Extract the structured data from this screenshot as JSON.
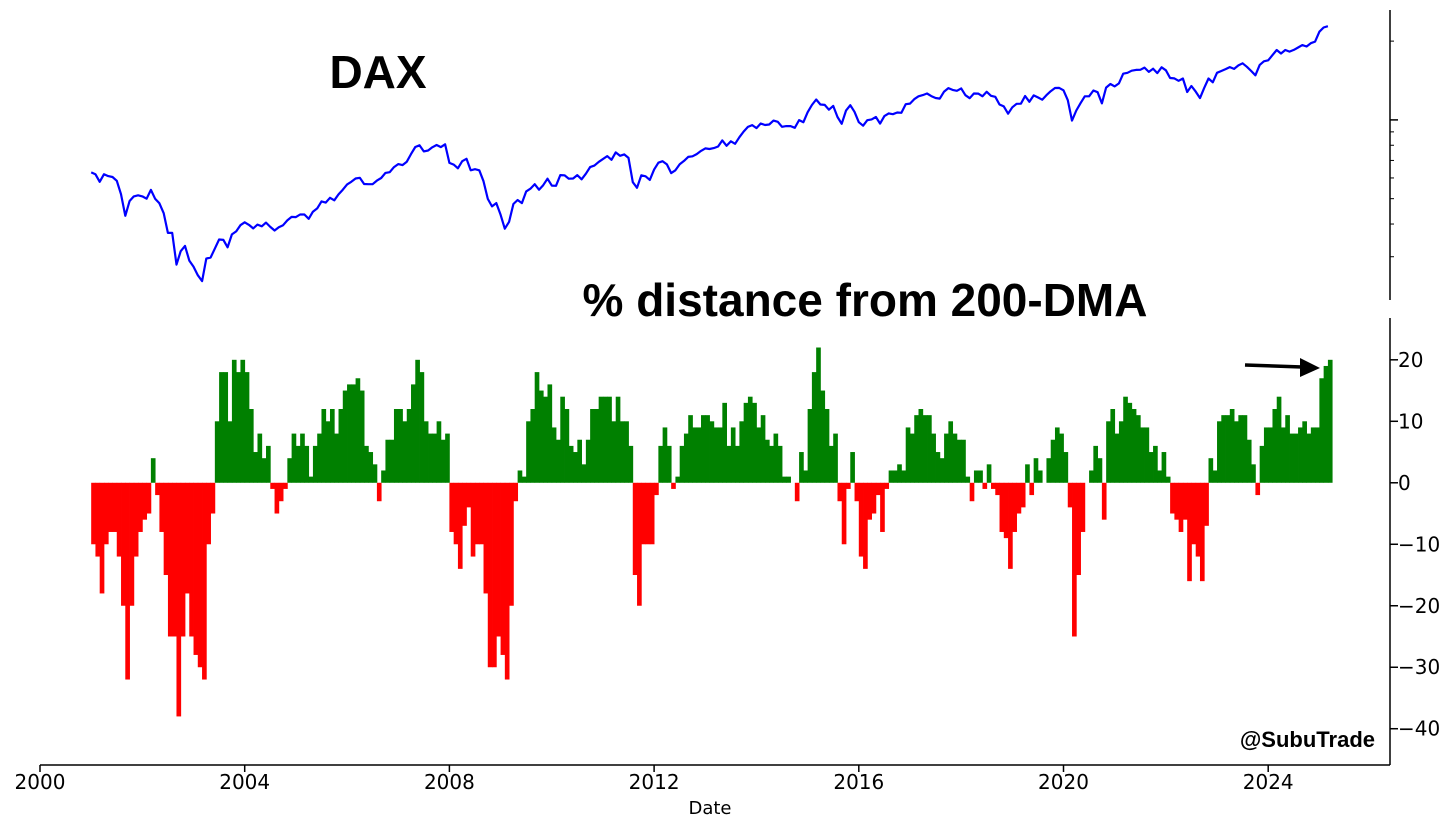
{
  "chart_data": {
    "type": "panels",
    "xlabel": "Date",
    "annotation": "@SubuTrade",
    "xlim": [
      2000,
      2026.38
    ],
    "xticks": [
      2000,
      2004,
      2008,
      2012,
      2016,
      2020,
      2024
    ],
    "x": [
      "2001-01",
      "2001-02",
      "2001-03",
      "2001-04",
      "2001-05",
      "2001-06",
      "2001-07",
      "2001-08",
      "2001-09",
      "2001-10",
      "2001-11",
      "2001-12",
      "2002-01",
      "2002-02",
      "2002-03",
      "2002-04",
      "2002-05",
      "2002-06",
      "2002-07",
      "2002-08",
      "2002-09",
      "2002-10",
      "2002-11",
      "2002-12",
      "2003-01",
      "2003-02",
      "2003-03",
      "2003-04",
      "2003-05",
      "2003-06",
      "2003-07",
      "2003-08",
      "2003-09",
      "2003-10",
      "2003-11",
      "2003-12",
      "2004-01",
      "2004-02",
      "2004-03",
      "2004-04",
      "2004-05",
      "2004-06",
      "2004-07",
      "2004-08",
      "2004-09",
      "2004-10",
      "2004-11",
      "2004-12",
      "2005-01",
      "2005-02",
      "2005-03",
      "2005-04",
      "2005-05",
      "2005-06",
      "2005-07",
      "2005-08",
      "2005-09",
      "2005-10",
      "2005-11",
      "2005-12",
      "2006-01",
      "2006-02",
      "2006-03",
      "2006-04",
      "2006-05",
      "2006-06",
      "2006-07",
      "2006-08",
      "2006-09",
      "2006-10",
      "2006-11",
      "2006-12",
      "2007-01",
      "2007-02",
      "2007-03",
      "2007-04",
      "2007-05",
      "2007-06",
      "2007-07",
      "2007-08",
      "2007-09",
      "2007-10",
      "2007-11",
      "2007-12",
      "2008-01",
      "2008-02",
      "2008-03",
      "2008-04",
      "2008-05",
      "2008-06",
      "2008-07",
      "2008-08",
      "2008-09",
      "2008-10",
      "2008-11",
      "2008-12",
      "2009-01",
      "2009-02",
      "2009-03",
      "2009-04",
      "2009-05",
      "2009-06",
      "2009-07",
      "2009-08",
      "2009-09",
      "2009-10",
      "2009-11",
      "2009-12",
      "2010-01",
      "2010-02",
      "2010-03",
      "2010-04",
      "2010-05",
      "2010-06",
      "2010-07",
      "2010-08",
      "2010-09",
      "2010-10",
      "2010-11",
      "2010-12",
      "2011-01",
      "2011-02",
      "2011-03",
      "2011-04",
      "2011-05",
      "2011-06",
      "2011-07",
      "2011-08",
      "2011-09",
      "2011-10",
      "2011-11",
      "2011-12",
      "2012-01",
      "2012-02",
      "2012-03",
      "2012-04",
      "2012-05",
      "2012-06",
      "2012-07",
      "2012-08",
      "2012-09",
      "2012-10",
      "2012-11",
      "2012-12",
      "2013-01",
      "2013-02",
      "2013-03",
      "2013-04",
      "2013-05",
      "2013-06",
      "2013-07",
      "2013-08",
      "2013-09",
      "2013-10",
      "2013-11",
      "2013-12",
      "2014-01",
      "2014-02",
      "2014-03",
      "2014-04",
      "2014-05",
      "2014-06",
      "2014-07",
      "2014-08",
      "2014-09",
      "2014-10",
      "2014-11",
      "2014-12",
      "2015-01",
      "2015-02",
      "2015-03",
      "2015-04",
      "2015-05",
      "2015-06",
      "2015-07",
      "2015-08",
      "2015-09",
      "2015-10",
      "2015-11",
      "2015-12",
      "2016-01",
      "2016-02",
      "2016-03",
      "2016-04",
      "2016-05",
      "2016-06",
      "2016-07",
      "2016-08",
      "2016-09",
      "2016-10",
      "2016-11",
      "2016-12",
      "2017-01",
      "2017-02",
      "2017-03",
      "2017-04",
      "2017-05",
      "2017-06",
      "2017-07",
      "2017-08",
      "2017-09",
      "2017-10",
      "2017-11",
      "2017-12",
      "2018-01",
      "2018-02",
      "2018-03",
      "2018-04",
      "2018-05",
      "2018-06",
      "2018-07",
      "2018-08",
      "2018-09",
      "2018-10",
      "2018-11",
      "2018-12",
      "2019-01",
      "2019-02",
      "2019-03",
      "2019-04",
      "2019-05",
      "2019-06",
      "2019-07",
      "2019-08",
      "2019-09",
      "2019-10",
      "2019-11",
      "2019-12",
      "2020-01",
      "2020-02",
      "2020-03",
      "2020-04",
      "2020-05",
      "2020-06",
      "2020-07",
      "2020-08",
      "2020-09",
      "2020-10",
      "2020-11",
      "2020-12",
      "2021-01",
      "2021-02",
      "2021-03",
      "2021-04",
      "2021-05",
      "2021-06",
      "2021-07",
      "2021-08",
      "2021-09",
      "2021-10",
      "2021-11",
      "2021-12",
      "2022-01",
      "2022-02",
      "2022-03",
      "2022-04",
      "2022-05",
      "2022-06",
      "2022-07",
      "2022-08",
      "2022-09",
      "2022-10",
      "2022-11",
      "2022-12",
      "2023-01",
      "2023-02",
      "2023-03",
      "2023-04",
      "2023-05",
      "2023-06",
      "2023-07",
      "2023-08",
      "2023-09",
      "2023-10",
      "2023-11",
      "2023-12",
      "2024-01",
      "2024-02",
      "2024-03",
      "2024-04",
      "2024-05",
      "2024-06",
      "2024-07",
      "2024-08",
      "2024-09",
      "2024-10",
      "2024-11",
      "2024-12",
      "2025-01",
      "2025-02",
      "2025-03"
    ],
    "panels": [
      {
        "type": "line",
        "title": "DAX",
        "color": "#0000ff",
        "yscale": "log",
        "ylim": [
          2050,
          26300
        ],
        "yticks": [
          3000,
          4000,
          5000,
          6000,
          7000,
          8000,
          9000,
          10000,
          20000
        ],
        "tick_labels": false,
        "values": [
          6300,
          6200,
          5800,
          6200,
          6100,
          6050,
          5850,
          5200,
          4300,
          4900,
          5100,
          5150,
          5100,
          5000,
          5400,
          5000,
          4800,
          4400,
          3700,
          3700,
          2800,
          3150,
          3300,
          2900,
          2750,
          2550,
          2420,
          2950,
          2980,
          3220,
          3490,
          3480,
          3260,
          3650,
          3750,
          3960,
          4060,
          3970,
          3850,
          3980,
          3920,
          4050,
          3900,
          3780,
          3890,
          3960,
          4130,
          4260,
          4250,
          4350,
          4350,
          4190,
          4460,
          4590,
          4880,
          4830,
          5040,
          4930,
          5190,
          5410,
          5670,
          5800,
          5970,
          6010,
          5690,
          5680,
          5680,
          5860,
          6000,
          6270,
          6310,
          6600,
          6780,
          6720,
          6920,
          7400,
          7880,
          8000,
          7580,
          7640,
          7860,
          8020,
          7870,
          8070,
          6850,
          6750,
          6530,
          6950,
          7100,
          6420,
          6480,
          6420,
          5830,
          4990,
          4670,
          4810,
          4340,
          3840,
          4080,
          4770,
          4940,
          4810,
          5330,
          5460,
          5680,
          5410,
          5630,
          5960,
          5610,
          5600,
          6150,
          6140,
          5960,
          5970,
          6150,
          5930,
          6230,
          6600,
          6690,
          6910,
          7080,
          7270,
          7040,
          7510,
          7290,
          7380,
          7160,
          5780,
          5500,
          6140,
          6090,
          5900,
          6460,
          6860,
          6950,
          6760,
          6260,
          6420,
          6770,
          6970,
          7220,
          7260,
          7400,
          7610,
          7780,
          7740,
          7800,
          7910,
          8350,
          7960,
          8280,
          8100,
          8590,
          9030,
          9400,
          9550,
          9300,
          9690,
          9560,
          9600,
          9940,
          9830,
          9410,
          9470,
          9470,
          9330,
          9980,
          9800,
          10690,
          11400,
          11970,
          11450,
          11410,
          10940,
          11310,
          10260,
          9660,
          10850,
          11380,
          10740,
          9800,
          9500,
          9970,
          10040,
          10260,
          9680,
          10340,
          10590,
          10510,
          10670,
          10640,
          11480,
          11540,
          12000,
          12310,
          12440,
          12620,
          12330,
          12120,
          12060,
          12830,
          13230,
          13020,
          12920,
          13190,
          12430,
          12100,
          12610,
          12600,
          12310,
          12810,
          12360,
          12250,
          11450,
          11260,
          10560,
          11170,
          11520,
          11530,
          12340,
          11730,
          12400,
          12190,
          11940,
          12430,
          12870,
          13240,
          13250,
          12980,
          11890,
          9940,
          10860,
          11590,
          12310,
          12310,
          12950,
          12760,
          11560,
          13290,
          13720,
          13430,
          13790,
          15010,
          15140,
          15420,
          15530,
          15540,
          15840,
          15260,
          15690,
          15100,
          15880,
          15470,
          14460,
          14410,
          14100,
          14390,
          12780,
          13480,
          12830,
          12110,
          13250,
          14400,
          13920,
          15130,
          15370,
          15630,
          15920,
          15660,
          16150,
          16450,
          15950,
          15390,
          14810,
          16220,
          16750,
          16900,
          17680,
          18490,
          17930,
          18500,
          18240,
          18510,
          18910,
          19320,
          19080,
          19630,
          19910,
          21730,
          22550,
          22800
        ]
      },
      {
        "type": "bar",
        "title": "% distance from 200-DMA",
        "positive_color": "#008000",
        "negative_color": "#ff0000",
        "ylim": [
          -45.9,
          26.8
        ],
        "yticks": [
          {
            "value": -40,
            "label": "−40"
          },
          {
            "value": -30,
            "label": "−30"
          },
          {
            "value": -20,
            "label": "−20"
          },
          {
            "value": -10,
            "label": "−10"
          },
          0,
          10,
          20
        ],
        "values": [
          -10,
          -12,
          -18,
          -10,
          -8,
          -8,
          -12,
          -20,
          -32,
          -20,
          -12,
          -8,
          -6,
          -5,
          4,
          -2,
          -8,
          -15,
          -25,
          -25,
          -38,
          -25,
          -18,
          -25,
          -28,
          -30,
          -32,
          -10,
          -5,
          10,
          18,
          18,
          10,
          20,
          18,
          20,
          18,
          12,
          5,
          8,
          4,
          6,
          -1,
          -5,
          -3,
          -1,
          4,
          8,
          6,
          8,
          6,
          1,
          6,
          8,
          12,
          10,
          12,
          8,
          12,
          15,
          16,
          16,
          17,
          15,
          6,
          5,
          3,
          -3,
          2,
          7,
          7,
          12,
          12,
          10,
          12,
          16,
          20,
          18,
          10,
          8,
          8,
          10,
          7,
          8,
          -8,
          -10,
          -14,
          -7,
          -4,
          -12,
          -10,
          -10,
          -18,
          -30,
          -30,
          -25,
          -28,
          -32,
          -20,
          -3,
          2,
          1,
          10,
          12,
          18,
          15,
          14,
          16,
          9,
          7,
          14,
          12,
          6,
          5,
          7,
          3,
          7,
          12,
          12,
          14,
          14,
          14,
          10,
          14,
          10,
          10,
          6,
          -15,
          -20,
          -10,
          -10,
          -10,
          -2,
          6,
          9,
          6,
          -1,
          1,
          6,
          8,
          11,
          9,
          9,
          11,
          11,
          10,
          9,
          9,
          13,
          6,
          9,
          6,
          10,
          13,
          14,
          13,
          9,
          11,
          7,
          6,
          8,
          6,
          1,
          1,
          0,
          -3,
          5,
          2,
          12,
          18,
          22,
          15,
          12,
          6,
          8,
          -3,
          -10,
          -1,
          5,
          -3,
          -12,
          -14,
          -6,
          -5,
          -2,
          -8,
          -1,
          2,
          2,
          3,
          2,
          9,
          8,
          11,
          12,
          11,
          11,
          8,
          5,
          4,
          8,
          10,
          8,
          7,
          7,
          1,
          -3,
          2,
          2,
          -1,
          3,
          -1,
          -2,
          -8,
          -9,
          -14,
          -8,
          -5,
          -4,
          3,
          -2,
          4,
          2,
          0,
          4,
          7,
          9,
          8,
          5,
          -4,
          -25,
          -15,
          -8,
          0,
          2,
          6,
          4,
          -6,
          10,
          12,
          8,
          10,
          14,
          13,
          12,
          11,
          9,
          9,
          5,
          6,
          2,
          5,
          1,
          -5,
          -6,
          -8,
          -6,
          -16,
          -10,
          -12,
          -16,
          -7,
          4,
          2,
          10,
          11,
          11,
          12,
          10,
          11,
          11,
          7,
          3,
          -2,
          6,
          9,
          9,
          12,
          14,
          9,
          11,
          8,
          8,
          9,
          10,
          8,
          9,
          9,
          17,
          19,
          20
        ]
      }
    ]
  }
}
